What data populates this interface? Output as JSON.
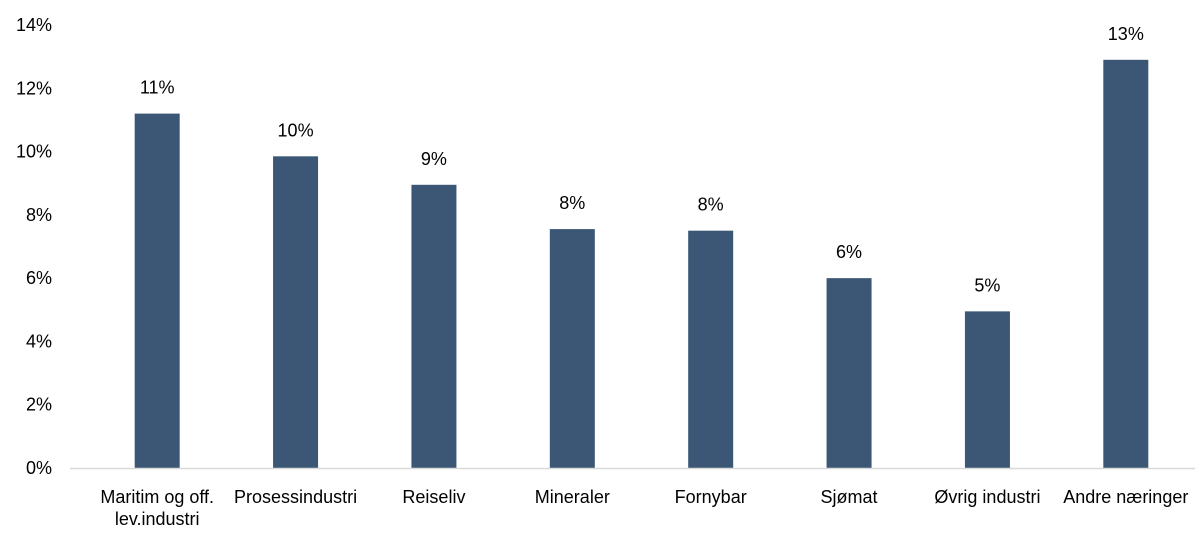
{
  "chart_data": {
    "type": "bar",
    "title": "",
    "xlabel": "",
    "ylabel": "",
    "categories": [
      [
        "Maritim og off.",
        "lev.industri"
      ],
      [
        "Prosessindustri"
      ],
      [
        "Reiseliv"
      ],
      [
        "Mineraler"
      ],
      [
        "Fornybar"
      ],
      [
        "Sjømat"
      ],
      [
        "Øvrig industri"
      ],
      [
        "Andre næringer"
      ]
    ],
    "values": [
      11.2,
      9.85,
      8.95,
      7.55,
      7.5,
      6.0,
      4.95,
      12.9
    ],
    "data_labels": [
      "11%",
      "10%",
      "9%",
      "8%",
      "8%",
      "6%",
      "5%",
      "13%"
    ],
    "ylim": [
      0,
      14
    ],
    "yticks": [
      {
        "value": 0,
        "label": "0%"
      },
      {
        "value": 2,
        "label": "2%"
      },
      {
        "value": 4,
        "label": "4%"
      },
      {
        "value": 6,
        "label": "6%"
      },
      {
        "value": 8,
        "label": "8%"
      },
      {
        "value": 10,
        "label": "10%"
      },
      {
        "value": 12,
        "label": "12%"
      },
      {
        "value": 14,
        "label": "14%"
      }
    ],
    "grid": false,
    "legend": "none",
    "bar_color": "#3b5775",
    "axis_color": "#d9d9d9"
  }
}
